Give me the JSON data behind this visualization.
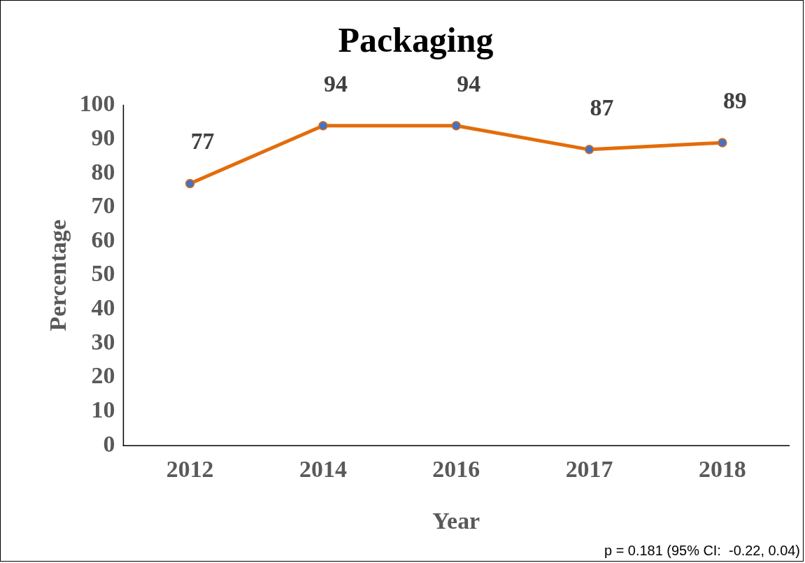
{
  "chart_data": {
    "type": "line",
    "title": "Packaging",
    "xlabel": "Year",
    "ylabel": "Percentage",
    "categories": [
      "2012",
      "2014",
      "2016",
      "2017",
      "2018"
    ],
    "series": [
      {
        "color": "#e46c0a",
        "values": [
          77,
          94,
          94,
          87,
          89
        ]
      }
    ],
    "ylim": [
      0,
      100
    ],
    "yticks": [
      0,
      10,
      20,
      30,
      40,
      50,
      60,
      70,
      80,
      90,
      100
    ],
    "grid": false,
    "legend": false,
    "marker": "circle",
    "line_style": "solid",
    "data_labels": true,
    "annotations": [
      "p = 0.181 (95% CI:  -0.22, 0.04)"
    ]
  }
}
